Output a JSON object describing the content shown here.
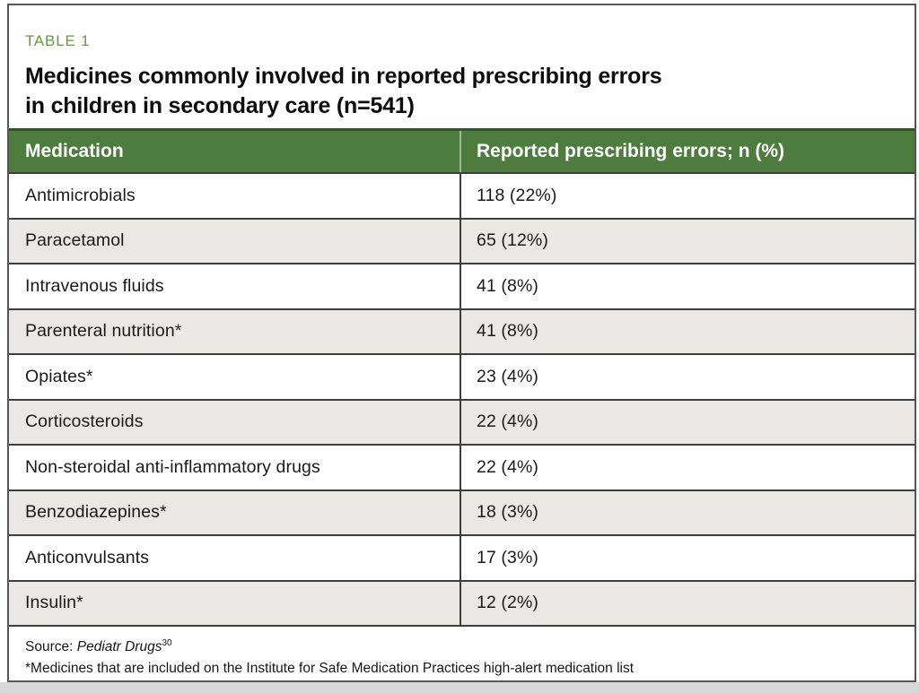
{
  "figure": {
    "label": "TABLE 1",
    "title_line1": "Medicines commonly involved in reported prescribing errors",
    "title_line2": "in children in secondary care (n=541)",
    "columns": {
      "medication": "Medication",
      "errors": "Reported prescribing errors; n (%)"
    },
    "rows": [
      {
        "medication": "Antimicrobials",
        "value": "118 (22%)"
      },
      {
        "medication": "Paracetamol",
        "value": "65 (12%)"
      },
      {
        "medication": "Intravenous fluids",
        "value": "41 (8%)"
      },
      {
        "medication": "Parenteral nutrition*",
        "value": "41 (8%)"
      },
      {
        "medication": "Opiates*",
        "value": "23 (4%)"
      },
      {
        "medication": "Corticosteroids",
        "value": "22 (4%)"
      },
      {
        "medication": "Non-steroidal anti-inflammatory drugs",
        "value": "22 (4%)"
      },
      {
        "medication": "Benzodiazepines*",
        "value": "18 (3%)"
      },
      {
        "medication": "Anticonvulsants",
        "value": "17 (3%)"
      },
      {
        "medication": "Insulin*",
        "value": "12 (2%)"
      }
    ],
    "footnotes": {
      "source_prefix": "Source: ",
      "source_journal": "Pediatr Drugs",
      "source_ref": "30",
      "asterisk_note": "*Medicines that are included on the Institute for Safe Medication Practices high-alert medication list"
    },
    "colors": {
      "header_green": "#4d7c3e",
      "header_green_dark": "#2d5a1e",
      "label_green": "#68993f",
      "row_alt_gray": "#e9e8e4",
      "rule_dark": "#3d3d3d",
      "frame_gray": "#55565a",
      "page_strip_gray": "#d8d8d8"
    }
  },
  "chart_data": {
    "type": "table",
    "title": "Medicines commonly involved in reported prescribing errors in children in secondary care (n=541)",
    "columns": [
      "Medication",
      "Reported prescribing errors; n (%)"
    ],
    "categories": [
      "Antimicrobials",
      "Paracetamol",
      "Intravenous fluids",
      "Parenteral nutrition*",
      "Opiates*",
      "Corticosteroids",
      "Non-steroidal anti-inflammatory drugs",
      "Benzodiazepines*",
      "Anticonvulsants",
      "Insulin*"
    ],
    "values_n": [
      118,
      65,
      41,
      41,
      23,
      22,
      22,
      18,
      17,
      12
    ],
    "values_pct": [
      22,
      12,
      8,
      8,
      4,
      4,
      4,
      3,
      3,
      2
    ],
    "n_total": 541,
    "source": "Pediatr Drugs, ref 30"
  }
}
